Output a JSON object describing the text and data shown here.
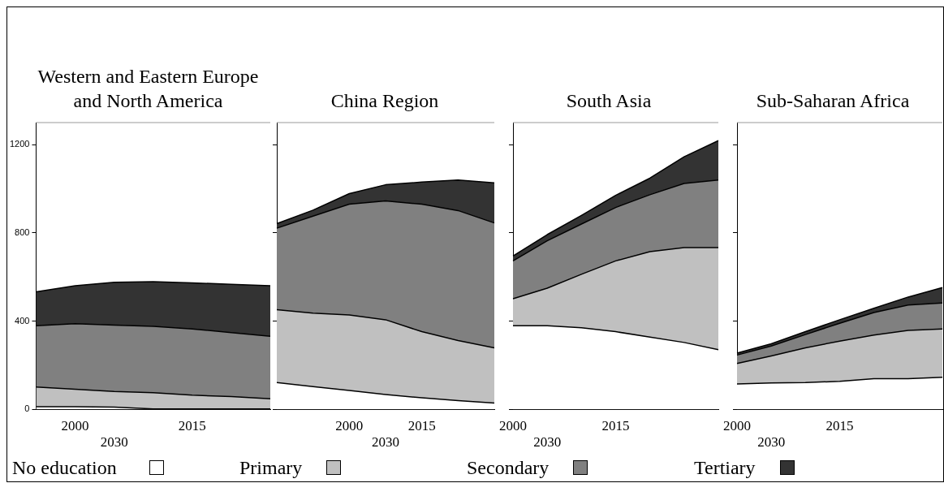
{
  "chart_data": [
    {
      "type": "area",
      "title": "Western and Eastern Europe and North America",
      "categories": [
        null,
        "2000",
        "2030",
        null,
        "2015",
        null,
        null
      ],
      "stacked": true,
      "ylim": [
        0,
        1300
      ],
      "yticks": [
        0,
        400,
        800,
        1200
      ],
      "legend": "bottom",
      "series": [
        {
          "name": "No education",
          "color": "#ffffff",
          "values": [
            12,
            12,
            10,
            2,
            2,
            2,
            2
          ]
        },
        {
          "name": "Primary",
          "color": "#c0c0c0",
          "values": [
            89,
            79,
            71,
            73,
            62,
            56,
            46
          ]
        },
        {
          "name": "Secondary",
          "color": "#808080",
          "values": [
            278,
            297,
            301,
            301,
            300,
            290,
            283
          ]
        },
        {
          "name": "Tertiary",
          "color": "#333333",
          "values": [
            154,
            172,
            194,
            203,
            209,
            219,
            229
          ]
        }
      ]
    },
    {
      "type": "area",
      "title": "China Region",
      "categories": [
        null,
        null,
        "2000",
        "2030",
        "2015",
        null,
        null
      ],
      "stacked": true,
      "ylim": [
        0,
        1300
      ],
      "yticks": [
        0,
        400,
        800,
        1200
      ],
      "tick_labels": "x",
      "series": [
        {
          "color": "#ffffff",
          "values": [
            121,
            103,
            85,
            67,
            52,
            39,
            28
          ]
        },
        {
          "color": "#c0c0c0",
          "values": [
            331,
            333,
            343,
            339,
            300,
            273,
            251
          ]
        },
        {
          "color": "#808080",
          "values": [
            369,
            440,
            502,
            539,
            578,
            589,
            566
          ]
        },
        {
          "color": "#333333",
          "values": [
            21,
            27,
            48,
            73,
            100,
            139,
            182
          ]
        }
      ]
    },
    {
      "type": "area",
      "title": "South Asia",
      "categories": [
        "2000",
        "2030",
        null,
        "2015",
        null,
        null,
        null
      ],
      "stacked": true,
      "ylim": [
        0,
        1300
      ],
      "yticks": [
        0,
        400,
        800,
        1200
      ],
      "tick_labels": "x",
      "series": [
        {
          "color": "#ffffff",
          "values": [
            379,
            379,
            370,
            352,
            327,
            303,
            270
          ]
        },
        {
          "color": "#c0c0c0",
          "values": [
            122,
            170,
            242,
            321,
            388,
            430,
            463
          ]
        },
        {
          "color": "#808080",
          "values": [
            172,
            215,
            228,
            242,
            258,
            291,
            307
          ]
        },
        {
          "color": "#333333",
          "values": [
            22,
            28,
            39,
            55,
            75,
            121,
            178
          ]
        }
      ]
    },
    {
      "type": "area",
      "title": "Sub-Saharan Africa",
      "categories": [
        "2000",
        "2030",
        null,
        "2015",
        null,
        null,
        null
      ],
      "stacked": true,
      "ylim": [
        0,
        1300
      ],
      "yticks": [
        0,
        400,
        800,
        1200
      ],
      "tick_labels": "x",
      "series": [
        {
          "color": "#ffffff",
          "values": [
            115,
            119,
            121,
            127,
            139,
            139,
            145
          ]
        },
        {
          "color": "#c0c0c0",
          "values": [
            93,
            123,
            158,
            182,
            198,
            219,
            219
          ]
        },
        {
          "color": "#808080",
          "values": [
            38,
            45,
            60,
            81,
            102,
            115,
            118
          ]
        },
        {
          "color": "#333333",
          "values": [
            9,
            10,
            13,
            16,
            19,
            36,
            70
          ]
        }
      ]
    }
  ]
}
